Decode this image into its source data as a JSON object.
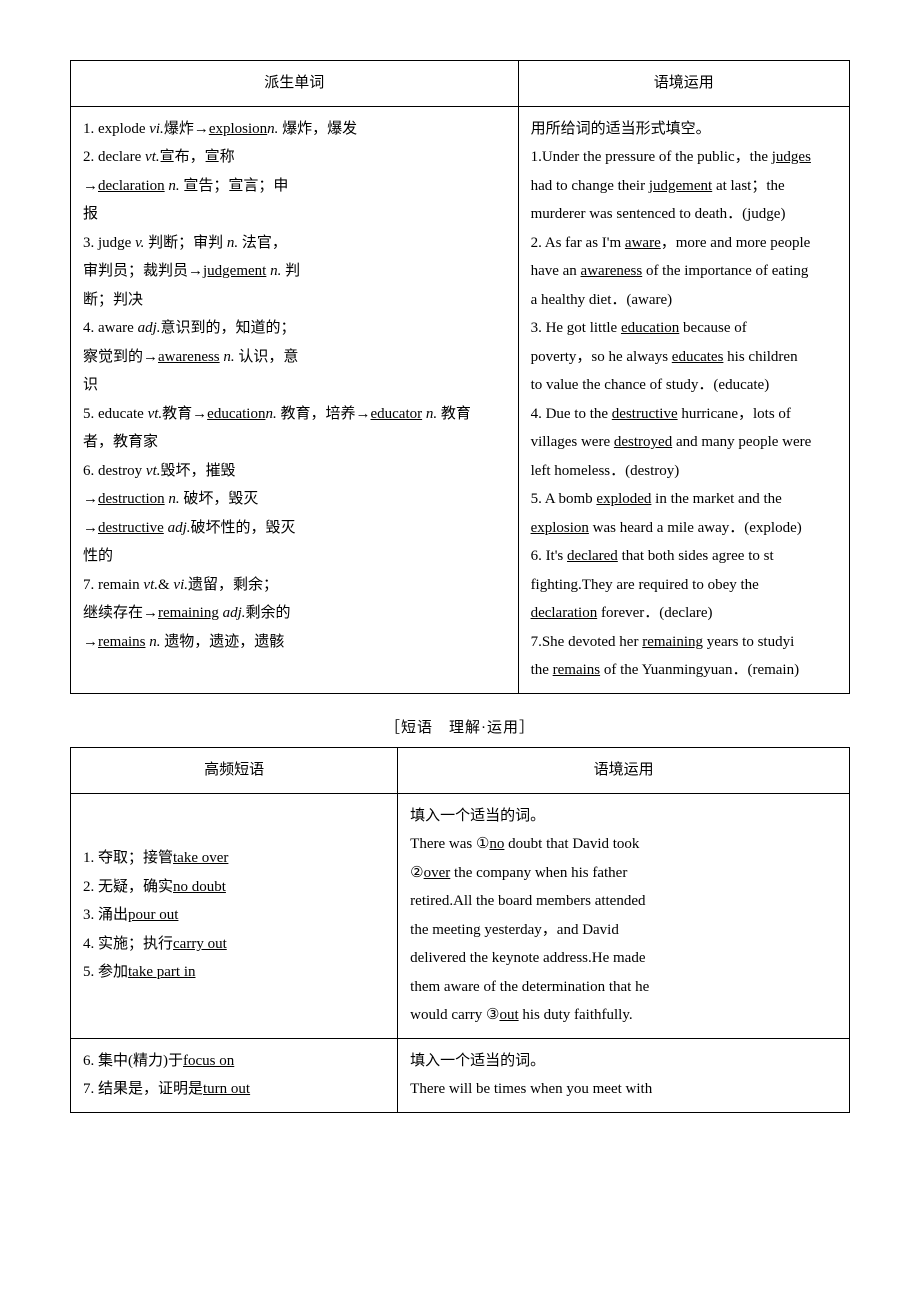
{
  "table1": {
    "headers": [
      "派生单词",
      "语境运用"
    ],
    "left": [
      {
        "pre": "1. explode ",
        "it": "vi.",
        "post": "爆炸→",
        "u": "explosion",
        "tail": ""
      },
      {
        "pre": "",
        "it": "n.",
        "post": " 爆炸，爆发",
        "u": "",
        "tail": ""
      },
      {
        "pre": "2. declare ",
        "it": "vt.",
        "post": "宣布，宣称",
        "u": "",
        "tail": ""
      },
      {
        "pre": "→",
        "it": "",
        "post": "",
        "u": "declaration",
        "tail": ""
      },
      {
        "pre": " ",
        "it": "n.",
        "post": " 宣告；宣言；申",
        "u": "",
        "tail": ""
      },
      {
        "pre": "报",
        "it": "",
        "post": "",
        "u": "",
        "tail": ""
      },
      {
        "pre": "3. judge ",
        "it": "v.",
        "post": " 判断；审判 ",
        "u": "",
        "tail": ""
      },
      {
        "pre": "",
        "it": "n.",
        "post": " 法官，",
        "u": "",
        "tail": ""
      },
      {
        "pre": "审判员；裁判员→",
        "it": "",
        "post": "",
        "u": "judgement",
        "tail": ""
      },
      {
        "pre": " ",
        "it": "n.",
        "post": " 判",
        "u": "",
        "tail": ""
      },
      {
        "pre": "断；判决",
        "it": "",
        "post": "",
        "u": "",
        "tail": ""
      },
      {
        "pre": "4. aware ",
        "it": "adj.",
        "post": "意识到的，知道的；",
        "u": "",
        "tail": ""
      },
      {
        "pre": "察觉到的→",
        "it": "",
        "post": "",
        "u": "awareness",
        "tail": ""
      },
      {
        "pre": " ",
        "it": "n.",
        "post": " 认识，意",
        "u": "",
        "tail": ""
      },
      {
        "pre": "识",
        "it": "",
        "post": "",
        "u": "",
        "tail": ""
      },
      {
        "pre": "5. educate ",
        "it": "vt.",
        "post": "教育→",
        "u": "education",
        "tail": ""
      },
      {
        "pre": "",
        "it": "n.",
        "post": " 教育，培养→",
        "u": "educator",
        "tail": ""
      },
      {
        "pre": " ",
        "it": "n.",
        "post": " 教育",
        "u": "",
        "tail": ""
      },
      {
        "pre": "者，教育家",
        "it": "",
        "post": "",
        "u": "",
        "tail": ""
      },
      {
        "pre": "6. destroy ",
        "it": "vt.",
        "post": "毁坏，摧毁",
        "u": "",
        "tail": ""
      },
      {
        "pre": "→",
        "it": "",
        "post": "",
        "u": "destruction",
        "tail": ""
      },
      {
        "pre": " ",
        "it": "n.",
        "post": " 破坏，毁灭",
        "u": "",
        "tail": ""
      },
      {
        "pre": "→",
        "it": "",
        "post": "",
        "u": "destructive",
        "tail": ""
      },
      {
        "pre": " ",
        "it": "adj.",
        "post": "破坏性的，毁灭",
        "u": "",
        "tail": ""
      },
      {
        "pre": "性的",
        "it": "",
        "post": "",
        "u": "",
        "tail": ""
      },
      {
        "pre": "7. remain  ",
        "it": "vt.",
        "post": "& ",
        "u": "",
        "tail": ""
      },
      {
        "pre": "",
        "it": "vi.",
        "post": "遗留，剩余；",
        "u": "",
        "tail": ""
      },
      {
        "pre": "继续存在→",
        "it": "",
        "post": "",
        "u": "remaining",
        "tail": ""
      },
      {
        "pre": " ",
        "it": "adj.",
        "post": "剩余的",
        "u": "",
        "tail": ""
      },
      {
        "pre": "→",
        "it": "",
        "post": "",
        "u": "remains",
        "tail": ""
      },
      {
        "pre": " ",
        "it": "n.",
        "post": " 遗物，遗迹，遗骸",
        "u": "",
        "tail": ""
      }
    ],
    "right": [
      {
        "t": "用所给词的适当形式填空。",
        "u1": "",
        "m": "",
        "u2": ""
      },
      {
        "t": "1.Under the pressure of the public，the ",
        "u1": "judges",
        "m": "",
        "u2": ""
      },
      {
        "t": "had to change their ",
        "u1": "judgement",
        "m": " at last；the",
        "u2": ""
      },
      {
        "t": "murderer was sentenced to death．(judge)",
        "u1": "",
        "m": "",
        "u2": ""
      },
      {
        "t": "2. As far as I'm ",
        "u1": "aware",
        "m": "，more and more people",
        "u2": ""
      },
      {
        "t": "have an ",
        "u1": "awareness",
        "m": " of the importance of eating",
        "u2": ""
      },
      {
        "t": "a healthy diet．(aware)",
        "u1": "",
        "m": "",
        "u2": ""
      },
      {
        "t": "3. He got little ",
        "u1": "education",
        "m": " because of",
        "u2": ""
      },
      {
        "t": "poverty，so he always ",
        "u1": "educates",
        "m": " his children",
        "u2": ""
      },
      {
        "t": "to value the chance of study．(educate)",
        "u1": "",
        "m": "",
        "u2": ""
      },
      {
        "t": "4. Due to the ",
        "u1": "destructive",
        "m": " hurricane，lots of",
        "u2": ""
      },
      {
        "t": "villages were ",
        "u1": "destroyed",
        "m": " and many people were",
        "u2": ""
      },
      {
        "t": "left homeless．(destroy)",
        "u1": "",
        "m": "",
        "u2": ""
      },
      {
        "t": "5. A bomb ",
        "u1": "exploded",
        "m": " in the market and the",
        "u2": ""
      },
      {
        "t": "",
        "u1": "explosion",
        "m": " was heard a mile away．(explode)",
        "u2": ""
      },
      {
        "t": "6. It's ",
        "u1": "declared",
        "m": " that both sides agree to st",
        "u2": ""
      },
      {
        "t": "fighting.They are required to obey the",
        "u1": "",
        "m": "",
        "u2": ""
      },
      {
        "t": "",
        "u1": "declaration",
        "m": " forever．(declare)",
        "u2": ""
      },
      {
        "t": "7.She devoted her ",
        "u1": "remaining",
        "m": " years to studyi",
        "u2": ""
      },
      {
        "t": "the ",
        "u1": "remains",
        "m": " of the Yuanmingyuan．(remain)",
        "u2": ""
      }
    ]
  },
  "caption": "［短语　理解·运用］",
  "table2": {
    "headers": [
      "高频短语",
      "语境运用"
    ],
    "rows": [
      {
        "left": [
          {
            "pre": "1. ",
            "u": "take over",
            "post": " 夺取；接管"
          },
          {
            "pre": "2. ",
            "u": "no doubt",
            "post": " 无疑，确实"
          },
          {
            "pre": "3. ",
            "u": "pour out",
            "post": " 涌出"
          },
          {
            "pre": "4. ",
            "u": "carry out",
            "post": " 实施；执行"
          },
          {
            "pre": "5. ",
            "u": "take part in",
            "post": " 参加"
          }
        ],
        "right": [
          {
            "t": "填入一个适当的词。",
            "u1": "",
            "m": "",
            "u2": ""
          },
          {
            "t": "There was ①",
            "u1": "no",
            "m": " doubt that David took",
            "u2": ""
          },
          {
            "t": "②",
            "u1": "over",
            "m": " the company when his father",
            "u2": ""
          },
          {
            "t": "retired.All the board members attended",
            "u1": "",
            "m": "",
            "u2": ""
          },
          {
            "t": "the meeting yesterday，and David",
            "u1": "",
            "m": "",
            "u2": ""
          },
          {
            "t": "delivered the keynote address.He made",
            "u1": "",
            "m": "",
            "u2": ""
          },
          {
            "t": "them aware of the determination that he",
            "u1": "",
            "m": "",
            "u2": ""
          },
          {
            "t": "would carry ③",
            "u1": "out",
            "m": " his duty faithfully.",
            "u2": ""
          }
        ]
      },
      {
        "left": [
          {
            "pre": "6. ",
            "u": "focus on",
            "post": " 集中(精力)于"
          },
          {
            "pre": "7. ",
            "u": "turn out",
            "post": " 结果是，证明是"
          }
        ],
        "right": [
          {
            "t": "填入一个适当的词。",
            "u1": "",
            "m": "",
            "u2": ""
          },
          {
            "t": "There will be times when you meet with",
            "u1": "",
            "m": "",
            "u2": ""
          }
        ]
      }
    ]
  }
}
